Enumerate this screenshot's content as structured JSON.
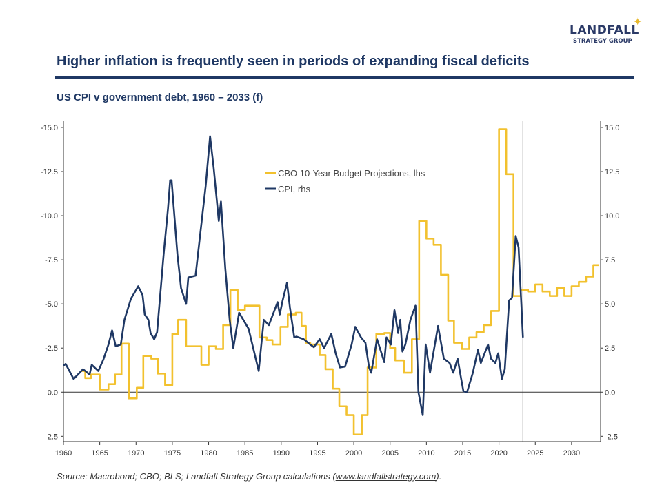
{
  "header": {
    "logo_text": "LANDFALL",
    "logo_subtext": "STRATEGY GROUP",
    "logo_star_icon": "four-point-star",
    "title": "Higher inflation is frequently seen in periods of expanding fiscal deficits",
    "subtitle": "US CPI v government debt, 1960 – 2033 (f)"
  },
  "footer": {
    "source_prefix": "Source: Macrobond; CBO; BLS; Landfall Strategy Group calculations (",
    "source_link": "www.landfallstrategy.com",
    "source_suffix": ")."
  },
  "chart_data": {
    "type": "line",
    "title": "",
    "xlim": [
      1960,
      2034
    ],
    "x_ticks": [
      "1960",
      "1965",
      "1970",
      "1975",
      "1980",
      "1985",
      "1990",
      "1995",
      "2000",
      "2005",
      "2010",
      "2015",
      "2020",
      "2025",
      "2030"
    ],
    "y_left": {
      "ticks": [
        "-15.0",
        "-12.5",
        "-10.0",
        "-7.5",
        "-5.0",
        "-2.5",
        "0.0",
        "2.5"
      ],
      "inverted": true
    },
    "y_right": {
      "ticks": [
        "15.0",
        "12.5",
        "10.0",
        "7.5",
        "5.0",
        "2.5",
        "0.0",
        "-2.5"
      ]
    },
    "ylim_rhs": [
      -2.8,
      15.35
    ],
    "forecast_divider_year": 2023.3,
    "zero_line": true,
    "grid": false,
    "legend_placement": "top-center",
    "colors": {
      "cbo": "#F2C12E",
      "cpi": "#1F3864",
      "axis": "#333333"
    },
    "series": [
      {
        "name": "CBO 10-Year Budget Projections, lhs",
        "axis": "left",
        "step": true,
        "points": [
          [
            1962.4,
            -1.2
          ],
          [
            1963.0,
            -0.8
          ],
          [
            1963.8,
            -1.0
          ],
          [
            1965.0,
            -0.15
          ],
          [
            1966.2,
            -0.45
          ],
          [
            1967.1,
            -1.0
          ],
          [
            1968.0,
            -2.75
          ],
          [
            1969.0,
            0.35
          ],
          [
            1970.1,
            -0.25
          ],
          [
            1971.0,
            -2.05
          ],
          [
            1972.1,
            -1.9
          ],
          [
            1973.0,
            -1.05
          ],
          [
            1974.0,
            -0.4
          ],
          [
            1975.0,
            -3.3
          ],
          [
            1975.8,
            -4.1
          ],
          [
            1976.9,
            -2.6
          ],
          [
            1979.0,
            -1.55
          ],
          [
            1980.0,
            -2.6
          ],
          [
            1981.0,
            -2.45
          ],
          [
            1982.0,
            -3.8
          ],
          [
            1983.0,
            -5.8
          ],
          [
            1984.0,
            -4.65
          ],
          [
            1985.0,
            -4.9
          ],
          [
            1987.0,
            -3.1
          ],
          [
            1988.0,
            -2.95
          ],
          [
            1988.8,
            -2.7
          ],
          [
            1989.9,
            -3.7
          ],
          [
            1990.9,
            -4.4
          ],
          [
            1992.0,
            -4.5
          ],
          [
            1992.8,
            -3.75
          ],
          [
            1993.4,
            -2.8
          ],
          [
            1994.0,
            -2.7
          ],
          [
            1995.3,
            -2.1
          ],
          [
            1996.1,
            -1.3
          ],
          [
            1997.1,
            -0.2
          ],
          [
            1998.0,
            0.8
          ],
          [
            1999.0,
            1.3
          ],
          [
            2000.0,
            2.4
          ],
          [
            2001.1,
            1.3
          ],
          [
            2001.9,
            -1.4
          ],
          [
            2003.1,
            -3.3
          ],
          [
            2004.2,
            -3.35
          ],
          [
            2005.0,
            -2.5
          ],
          [
            2005.7,
            -1.8
          ],
          [
            2006.9,
            -1.1
          ],
          [
            2008.0,
            -3.0
          ],
          [
            2009.0,
            -9.7
          ],
          [
            2010.0,
            -8.7
          ],
          [
            2011.0,
            -8.35
          ],
          [
            2012.0,
            -6.65
          ],
          [
            2013.0,
            -4.05
          ],
          [
            2013.8,
            -2.8
          ],
          [
            2014.9,
            -2.45
          ],
          [
            2015.9,
            -3.1
          ],
          [
            2016.9,
            -3.4
          ],
          [
            2017.9,
            -3.8
          ],
          [
            2018.9,
            -4.6
          ],
          [
            2020.0,
            -14.9
          ],
          [
            2021.0,
            -12.35
          ],
          [
            2022.0,
            -5.45
          ],
          [
            2023.0,
            -5.8
          ],
          [
            2024.0,
            -5.7
          ],
          [
            2025.0,
            -6.1
          ],
          [
            2026.0,
            -5.7
          ],
          [
            2027.0,
            -5.45
          ],
          [
            2028.0,
            -5.9
          ],
          [
            2029.0,
            -5.45
          ],
          [
            2030.0,
            -6.0
          ],
          [
            2031.0,
            -6.25
          ],
          [
            2032.0,
            -6.55
          ],
          [
            2033.0,
            -7.2
          ],
          [
            2033.8,
            -7.2
          ]
        ]
      },
      {
        "name": "CPI, rhs",
        "axis": "right",
        "step": false,
        "points": [
          [
            1960.0,
            1.5
          ],
          [
            1960.3,
            1.6
          ],
          [
            1961.4,
            0.75
          ],
          [
            1962.7,
            1.3
          ],
          [
            1963.6,
            1.0
          ],
          [
            1963.9,
            1.55
          ],
          [
            1964.8,
            1.2
          ],
          [
            1965.5,
            1.85
          ],
          [
            1966.2,
            2.7
          ],
          [
            1966.7,
            3.5
          ],
          [
            1967.2,
            2.6
          ],
          [
            1967.9,
            2.7
          ],
          [
            1968.4,
            4.1
          ],
          [
            1969.3,
            5.3
          ],
          [
            1970.3,
            6.0
          ],
          [
            1970.9,
            5.5
          ],
          [
            1971.2,
            4.4
          ],
          [
            1971.7,
            4.1
          ],
          [
            1972.0,
            3.35
          ],
          [
            1972.5,
            3.0
          ],
          [
            1972.9,
            3.4
          ],
          [
            1973.8,
            7.8
          ],
          [
            1974.4,
            10.4
          ],
          [
            1974.7,
            12.0
          ],
          [
            1974.9,
            12.0
          ],
          [
            1975.7,
            7.8
          ],
          [
            1976.2,
            5.9
          ],
          [
            1976.9,
            5.0
          ],
          [
            1977.2,
            6.5
          ],
          [
            1978.2,
            6.6
          ],
          [
            1978.8,
            8.8
          ],
          [
            1979.6,
            11.7
          ],
          [
            1980.2,
            14.5
          ],
          [
            1980.7,
            12.7
          ],
          [
            1981.4,
            9.7
          ],
          [
            1981.7,
            10.8
          ],
          [
            1982.3,
            7.0
          ],
          [
            1982.9,
            4.1
          ],
          [
            1983.4,
            2.5
          ],
          [
            1984.2,
            4.5
          ],
          [
            1985.5,
            3.6
          ],
          [
            1986.9,
            1.2
          ],
          [
            1987.6,
            4.1
          ],
          [
            1988.3,
            3.8
          ],
          [
            1989.5,
            5.1
          ],
          [
            1989.8,
            4.4
          ],
          [
            1990.2,
            5.2
          ],
          [
            1990.8,
            6.2
          ],
          [
            1991.2,
            4.8
          ],
          [
            1991.8,
            3.1
          ],
          [
            1992.1,
            3.15
          ],
          [
            1993.1,
            3.0
          ],
          [
            1994.0,
            2.7
          ],
          [
            1994.5,
            2.55
          ],
          [
            1995.3,
            3.0
          ],
          [
            1995.9,
            2.5
          ],
          [
            1996.9,
            3.3
          ],
          [
            1997.5,
            2.2
          ],
          [
            1998.1,
            1.4
          ],
          [
            1998.8,
            1.45
          ],
          [
            1999.7,
            2.7
          ],
          [
            2000.2,
            3.7
          ],
          [
            2001.0,
            3.1
          ],
          [
            2001.6,
            2.8
          ],
          [
            2002.1,
            1.4
          ],
          [
            2002.4,
            1.1
          ],
          [
            2003.2,
            3.0
          ],
          [
            2004.2,
            1.7
          ],
          [
            2004.5,
            3.1
          ],
          [
            2005.1,
            2.7
          ],
          [
            2005.6,
            4.65
          ],
          [
            2006.1,
            3.35
          ],
          [
            2006.4,
            4.1
          ],
          [
            2006.7,
            2.3
          ],
          [
            2007.1,
            2.7
          ],
          [
            2007.8,
            4.1
          ],
          [
            2008.5,
            4.9
          ],
          [
            2008.9,
            0.0
          ],
          [
            2009.5,
            -1.3
          ],
          [
            2009.9,
            2.7
          ],
          [
            2010.5,
            1.1
          ],
          [
            2011.6,
            3.75
          ],
          [
            2012.4,
            1.9
          ],
          [
            2013.2,
            1.65
          ],
          [
            2013.7,
            1.1
          ],
          [
            2014.3,
            1.9
          ],
          [
            2014.9,
            0.5
          ],
          [
            2015.1,
            0.05
          ],
          [
            2015.6,
            0.0
          ],
          [
            2016.4,
            1.1
          ],
          [
            2017.1,
            2.4
          ],
          [
            2017.5,
            1.65
          ],
          [
            2018.5,
            2.7
          ],
          [
            2018.9,
            1.9
          ],
          [
            2019.5,
            1.65
          ],
          [
            2019.9,
            2.2
          ],
          [
            2020.4,
            0.75
          ],
          [
            2020.8,
            1.3
          ],
          [
            2021.4,
            5.2
          ],
          [
            2021.8,
            5.35
          ],
          [
            2022.3,
            8.85
          ],
          [
            2022.7,
            8.2
          ],
          [
            2023.3,
            3.1
          ]
        ]
      }
    ]
  }
}
